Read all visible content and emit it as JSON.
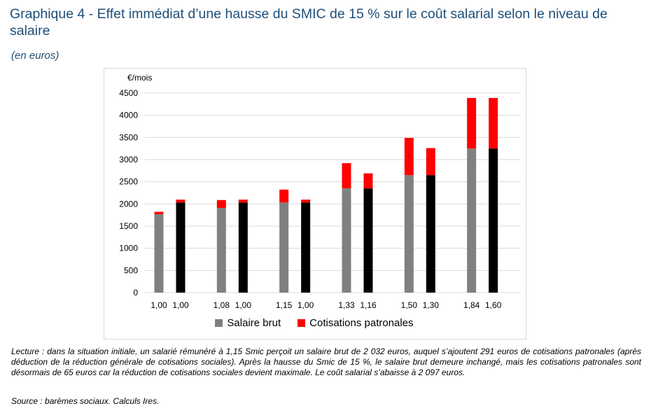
{
  "title": "Graphique 4 - Effet immédiat d’une hausse du SMIC de 15 % sur le coût salarial selon le niveau de salaire",
  "subtitle": "(en euros)",
  "note": "Lecture : dans la situation initiale, un salarié rémunéré à 1,15 Smic perçoit un salaire brut de 2 032 euros, auquel s’ajoutent 291 euros de cotisations patronales (après déduction de la réduction générale de cotisations sociales). Après la hausse du Smic de 15 %, le salaire brut demeure inchangé, mais les cotisations patronales sont désormais de 65 euros car la réduction de cotisations sociales devient maximale. Le coût salarial s’abaisse à 2 097 euros.",
  "source": "Source : barèmes sociaux. Calculs Ires.",
  "legend": {
    "salaire": "Salaire brut",
    "cotisations": "Cotisations patronales"
  },
  "colors": {
    "before_salary": "#808080",
    "after_salary": "#000000",
    "cotisations": "#ff0000",
    "grid": "#d9d9d9"
  },
  "chart_data": {
    "type": "bar",
    "stacked": true,
    "ylabel": "€/mois",
    "ylim": [
      0,
      4500
    ],
    "yticks": [
      0,
      500,
      1000,
      1500,
      2000,
      2500,
      3000,
      3500,
      4000,
      4500
    ],
    "grid": true,
    "legend_position": "bottom",
    "categories": [
      "1,00",
      "1,00",
      "1,08",
      "1,00",
      "1,15",
      "1,00",
      "1,33",
      "1,16",
      "1,50",
      "1,30",
      "1,84",
      "1,60"
    ],
    "groups": [
      {
        "bars": [
          0,
          1
        ]
      },
      {
        "bars": [
          2,
          3
        ]
      },
      {
        "bars": [
          4,
          5
        ]
      },
      {
        "bars": [
          6,
          7
        ]
      },
      {
        "bars": [
          8,
          9
        ]
      },
      {
        "bars": [
          10,
          11
        ]
      }
    ],
    "series": [
      {
        "name": "Salaire brut",
        "values": [
          1767,
          2032,
          1908,
          2032,
          2032,
          2032,
          2350,
          2350,
          2650,
          2650,
          3250,
          3250
        ]
      },
      {
        "name": "Cotisations patronales",
        "values": [
          55,
          65,
          180,
          65,
          291,
          65,
          570,
          340,
          840,
          610,
          1140,
          1140
        ]
      }
    ],
    "bar_state": [
      "before",
      "after",
      "before",
      "after",
      "before",
      "after",
      "before",
      "after",
      "before",
      "after",
      "before",
      "after"
    ]
  }
}
